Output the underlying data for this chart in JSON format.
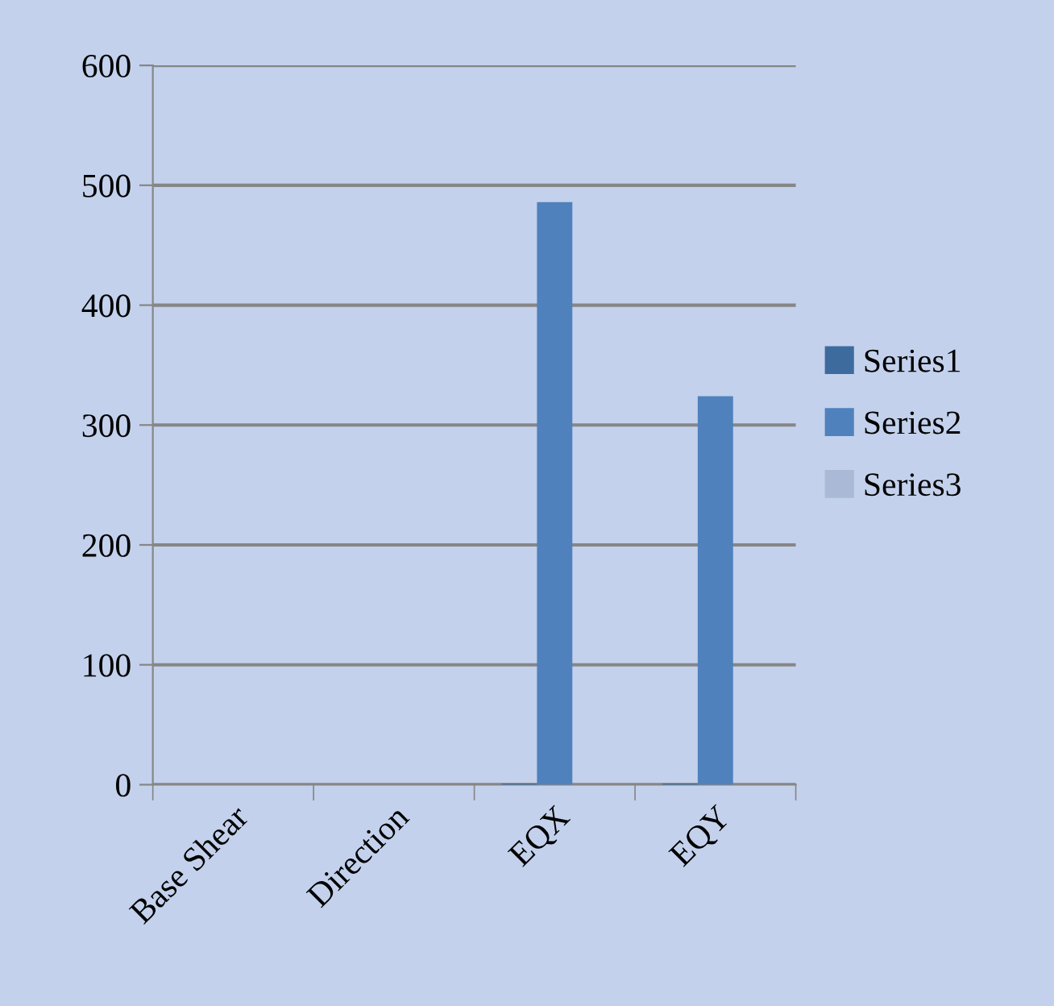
{
  "chart_data": {
    "type": "bar",
    "categories": [
      "Base Shear",
      "Direction",
      "EQX",
      "EQY"
    ],
    "series": [
      {
        "name": "Series1",
        "color": "#3d6b9e",
        "values": [
          null,
          null,
          1,
          1
        ]
      },
      {
        "name": "Series2",
        "color": "#4f81bd",
        "values": [
          null,
          null,
          486,
          324
        ]
      },
      {
        "name": "Series3",
        "color": "#aab9d6",
        "values": [
          null,
          null,
          null,
          null
        ]
      }
    ],
    "ylim": [
      0,
      600
    ],
    "yticks": [
      0,
      100,
      200,
      300,
      400,
      500,
      600
    ],
    "grid": "y",
    "legend": "right"
  }
}
